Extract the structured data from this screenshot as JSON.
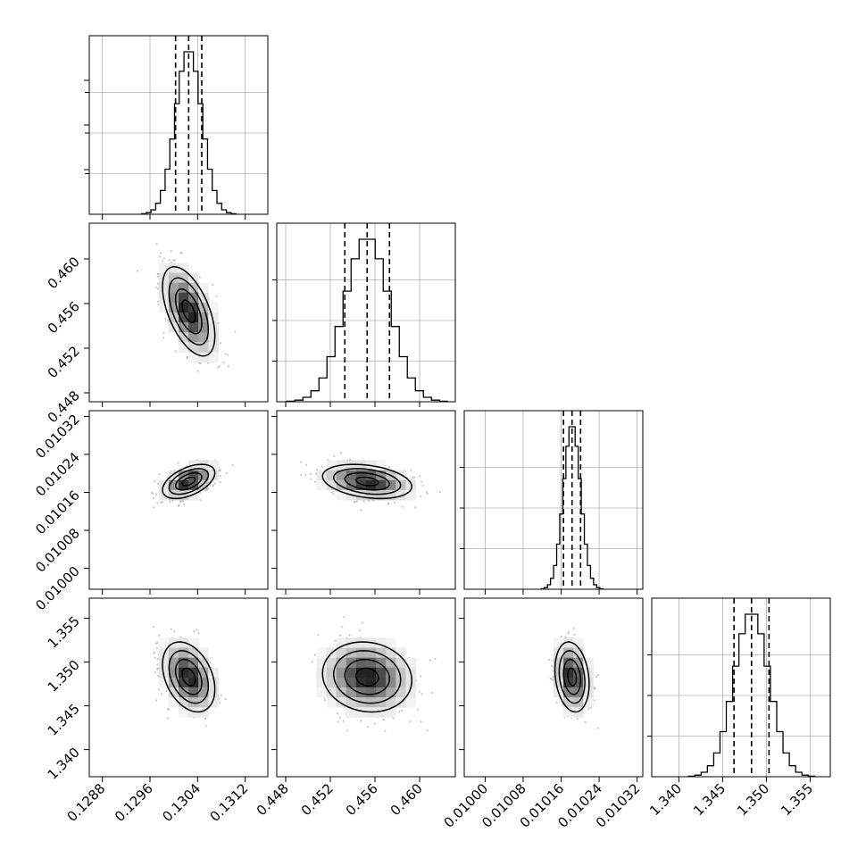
{
  "chart_data": {
    "type": "corner",
    "title": "",
    "parameters": [
      {
        "index": 0,
        "range": [
          0.12858,
          0.13158
        ],
        "ticks": [
          0.1288,
          0.1296,
          0.1304,
          0.1312
        ],
        "tick_labels": [
          "0.1288",
          "0.1296",
          "0.1304",
          "0.1312"
        ],
        "quantiles": [
          0.13003,
          0.13025,
          0.13047
        ],
        "peak": 0.13025,
        "sigma": 0.00022
      },
      {
        "index": 1,
        "range": [
          0.4472,
          0.4632
        ],
        "ticks": [
          0.448,
          0.452,
          0.456,
          0.46
        ],
        "tick_labels": [
          "0.448",
          "0.452",
          "0.456",
          "0.460"
        ],
        "quantiles": [
          0.4533,
          0.4553,
          0.4573
        ],
        "peak": 0.4553,
        "sigma": 0.002
      },
      {
        "index": 2,
        "range": [
          0.009956,
          0.010332
        ],
        "ticks": [
          0.01,
          0.01008,
          0.01016,
          0.01024,
          0.01032
        ],
        "tick_labels": [
          "0.01000",
          "0.01008",
          "0.01016",
          "0.01024",
          "0.01032"
        ],
        "quantiles": [
          0.010165,
          0.010183,
          0.010201
        ],
        "peak": 0.010183,
        "sigma": 1.8e-05
      },
      {
        "index": 3,
        "range": [
          1.3369,
          1.3573
        ],
        "ticks": [
          1.34,
          1.345,
          1.35,
          1.355
        ],
        "tick_labels": [
          "1.340",
          "1.345",
          "1.350",
          "1.355"
        ],
        "quantiles": [
          1.3463,
          1.3483,
          1.3503
        ],
        "peak": 1.3483,
        "sigma": 0.002
      }
    ],
    "pair_correlations": [
      {
        "x": 0,
        "y": 1,
        "rho": -0.55
      },
      {
        "x": 0,
        "y": 2,
        "rho": 0.5
      },
      {
        "x": 1,
        "y": 2,
        "rho": -0.3
      },
      {
        "x": 0,
        "y": 3,
        "rho": -0.35
      },
      {
        "x": 1,
        "y": 3,
        "rho": -0.1
      },
      {
        "x": 2,
        "y": 3,
        "rho": -0.2
      }
    ],
    "hist_bins": 20,
    "contour_levels_sigma": [
      0.5,
      1.0,
      1.5,
      2.0
    ],
    "grid": true,
    "colors": {
      "line": "#000000",
      "grid": "#b0b0b0",
      "points": "#9a9a9a"
    }
  }
}
